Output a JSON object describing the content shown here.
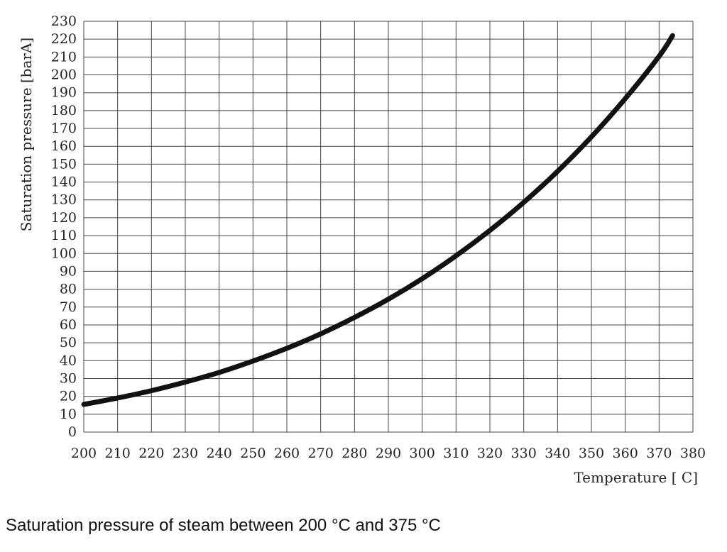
{
  "caption": "Saturation pressure of steam between 200 °C and 375 °C",
  "colors": {
    "curve": "#111111",
    "grid": "#444444",
    "text": "#222222"
  },
  "chart_data": {
    "type": "line",
    "title": "",
    "xlabel": "Temperature [ C]",
    "ylabel": "Saturation pressure [barA]",
    "xlim": [
      200,
      380
    ],
    "ylim": [
      0,
      230
    ],
    "xticks": [
      200,
      210,
      220,
      230,
      240,
      250,
      260,
      270,
      280,
      290,
      300,
      310,
      320,
      330,
      340,
      350,
      360,
      370,
      380
    ],
    "yticks": [
      0,
      10,
      20,
      30,
      40,
      50,
      60,
      70,
      80,
      90,
      100,
      110,
      120,
      130,
      140,
      150,
      160,
      170,
      180,
      190,
      200,
      210,
      220,
      230
    ],
    "grid": true,
    "legend": "none",
    "series": [
      {
        "x": [
          200,
          210,
          220,
          230,
          240,
          250,
          260,
          270,
          280,
          290,
          300,
          310,
          320,
          330,
          340,
          350,
          360,
          370,
          374
        ],
        "y": [
          15.5,
          19.1,
          23.2,
          28.0,
          33.4,
          39.8,
          46.9,
          55.0,
          64.2,
          74.4,
          85.9,
          98.7,
          112.9,
          128.6,
          146.0,
          165.3,
          186.7,
          210.4,
          222.0
        ]
      }
    ]
  }
}
